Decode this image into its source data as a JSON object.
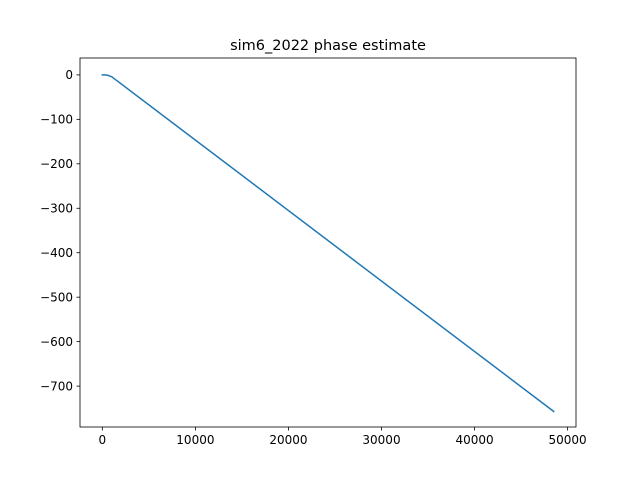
{
  "chart_data": {
    "type": "line",
    "title": "sim6_2022 phase estimate",
    "xlabel": "",
    "ylabel": "",
    "xlim": [
      -2400,
      50900
    ],
    "ylim": [
      -792,
      38
    ],
    "xticks": [
      0,
      10000,
      20000,
      30000,
      40000,
      50000
    ],
    "xtick_labels": [
      "0",
      "10000",
      "20000",
      "30000",
      "40000",
      "50000"
    ],
    "yticks": [
      0,
      -100,
      -200,
      -300,
      -400,
      -500,
      -600,
      -700
    ],
    "ytick_labels": [
      "0",
      "−100",
      "−200",
      "−300",
      "−400",
      "−500",
      "−600",
      "−700"
    ],
    "grid": false,
    "legend": "none",
    "series": [
      {
        "color": "#1f77b4",
        "x": [
          0,
          300,
          600,
          1000,
          48500
        ],
        "y": [
          0,
          0,
          -1,
          -4,
          -757
        ]
      }
    ]
  }
}
